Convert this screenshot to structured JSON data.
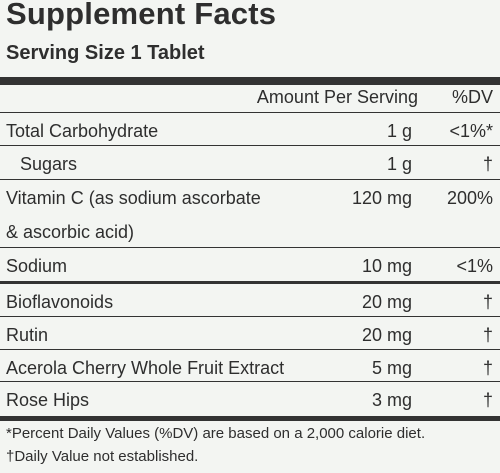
{
  "header": {
    "title": "Supplement Facts",
    "serving_size": "Serving Size 1 Tablet"
  },
  "table": {
    "columns": [
      "Amount Per Serving",
      "%DV"
    ],
    "rows": [
      {
        "name": "Total Carbohydrate",
        "amount": "1 g",
        "dv": "<1%*"
      },
      {
        "name": "Sugars",
        "amount": "1 g",
        "dv": "†"
      },
      {
        "name": "Vitamin C (as sodium ascorbate",
        "amount": "120 mg",
        "dv": "200%"
      },
      {
        "name": "& ascorbic acid)"
      },
      {
        "name": "Sodium",
        "amount": "10 mg",
        "dv": "<1%"
      },
      {
        "name": "Bioflavonoids",
        "amount": "20 mg",
        "dv": "†"
      },
      {
        "name": "Rutin",
        "amount": "20 mg",
        "dv": "†"
      },
      {
        "name": "Acerola Cherry Whole Fruit Extract",
        "amount": "5 mg",
        "dv": "†"
      },
      {
        "name": "Rose Hips",
        "amount": "3 mg",
        "dv": "†"
      }
    ]
  },
  "footnotes": [
    "*Percent Daily Values (%DV) are based on a 2,000 calorie diet.",
    "†Daily Value not established."
  ]
}
